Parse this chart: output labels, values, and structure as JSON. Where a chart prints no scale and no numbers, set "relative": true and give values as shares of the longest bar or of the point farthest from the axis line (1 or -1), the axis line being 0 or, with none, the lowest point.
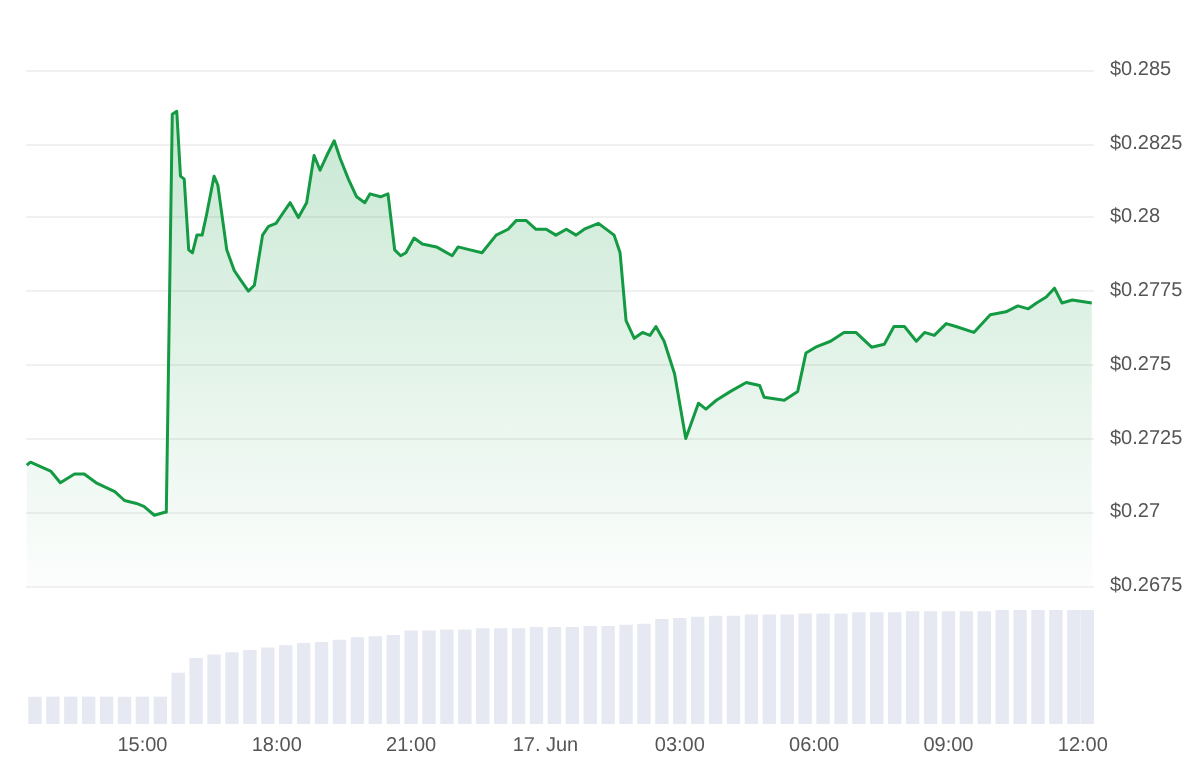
{
  "chart_data": [
    {
      "type": "area",
      "x": [
        "--06-16T12:25",
        "--06-16T12:30",
        "--06-16T12:57",
        "--06-16T13:10",
        "--06-16T13:29",
        "--06-16T13:42",
        "--06-16T13:58",
        "--06-16T14:23",
        "--06-16T14:36",
        "--06-16T14:52",
        "--06-16T15:02",
        "--06-16T15:16",
        "--06-16T15:30",
        "--06-16T15:32",
        "--06-16T15:40",
        "--06-16T15:46",
        "--06-16T15:51",
        "--06-16T15:56",
        "--06-16T16:02",
        "--06-16T16:07",
        "--06-16T16:13",
        "--06-16T16:20",
        "--06-16T16:26",
        "--06-16T16:36",
        "--06-16T16:41",
        "--06-16T16:53",
        "--06-16T17:03",
        "--06-16T17:11",
        "--06-16T17:22",
        "--06-16T17:30",
        "--06-16T17:41",
        "--06-16T17:49",
        "--06-16T17:59",
        "--06-16T18:07",
        "--06-16T18:18",
        "--06-16T18:29",
        "--06-16T18:40",
        "--06-16T18:50",
        "--06-16T18:58",
        "--06-16T19:07",
        "--06-16T19:17",
        "--06-16T19:25",
        "--06-16T19:36",
        "--06-16T19:47",
        "--06-16T19:58",
        "--06-16T20:05",
        "--06-16T20:19",
        "--06-16T20:29",
        "--06-16T20:38",
        "--06-16T20:46",
        "--06-16T20:53",
        "--06-16T21:04",
        "--06-16T21:15",
        "--06-16T21:34",
        "--06-16T21:55",
        "--06-16T22:03",
        "--06-16T22:19",
        "--06-16T22:35",
        "--06-16T22:54",
        "--06-16T23:10",
        "--06-16T23:21",
        "--06-16T23:34",
        "--06-16T23:47",
        "--06-17T00:01",
        "--06-17T00:14",
        "--06-17T00:28",
        "--06-17T00:41",
        "--06-17T00:52",
        "--06-17T01:11",
        "--06-17T01:32",
        "--06-17T01:40",
        "--06-17T01:48",
        "--06-17T01:59",
        "--06-17T02:10",
        "--06-17T02:20",
        "--06-17T02:28",
        "--06-17T02:39",
        "--06-17T02:53",
        "--06-17T03:08",
        "--06-17T03:25",
        "--06-17T03:35",
        "--06-17T03:49",
        "--06-17T04:08",
        "--06-17T04:29",
        "--06-17T04:47",
        "--06-17T04:53",
        "--06-17T05:20",
        "--06-17T05:38",
        "--06-17T05:49",
        "--06-17T06:02",
        "--06-17T06:22",
        "--06-17T06:40",
        "--06-17T06:56",
        "--06-17T07:17",
        "--06-17T07:34",
        "--06-17T07:47",
        "--06-17T08:01",
        "--06-17T08:17",
        "--06-17T08:28",
        "--06-17T08:41",
        "--06-17T08:57",
        "--06-17T09:10",
        "--06-17T09:34",
        "--06-17T09:56",
        "--06-17T10:17",
        "--06-17T10:33",
        "--06-17T10:47",
        "--06-17T10:58",
        "--06-17T11:11",
        "--06-17T11:22",
        "--06-17T11:32",
        "--06-17T11:46",
        "--06-17T12:12"
      ],
      "series": [
        {
          "color": "#139a43",
          "values": [
            0.2716,
            0.2717,
            0.2714,
            0.271,
            0.2713,
            0.2713,
            0.271,
            0.2707,
            0.2704,
            0.2703,
            0.2702,
            0.2699,
            0.27,
            0.27,
            0.2835,
            0.2836,
            0.2814,
            0.2813,
            0.2789,
            0.2788,
            0.2794,
            0.2794,
            0.2801,
            0.2814,
            0.2811,
            0.2789,
            0.2782,
            0.2779,
            0.2775,
            0.2777,
            0.2794,
            0.2797,
            0.2798,
            0.2801,
            0.2805,
            0.28,
            0.2805,
            0.2821,
            0.2816,
            0.2821,
            0.2826,
            0.282,
            0.2813,
            0.2807,
            0.2805,
            0.2808,
            0.2807,
            0.2808,
            0.2789,
            0.2787,
            0.2788,
            0.2793,
            0.2791,
            0.279,
            0.2787,
            0.279,
            0.2789,
            0.2788,
            0.2794,
            0.2796,
            0.2799,
            0.2799,
            0.2796,
            0.2796,
            0.2794,
            0.2796,
            0.2794,
            0.2796,
            0.2798,
            0.2794,
            0.2788,
            0.2765,
            0.2759,
            0.2761,
            0.276,
            0.2763,
            0.2758,
            0.2747,
            0.2725,
            0.2737,
            0.2735,
            0.2738,
            0.2741,
            0.2744,
            0.2743,
            0.2739,
            0.2738,
            0.2741,
            0.2754,
            0.2756,
            0.2758,
            0.2761,
            0.2761,
            0.2756,
            0.2757,
            0.2763,
            0.2763,
            0.2758,
            0.2761,
            0.276,
            0.2764,
            0.2763,
            0.2761,
            0.2767,
            0.2768,
            0.277,
            0.2769,
            0.2771,
            0.2773,
            0.2776,
            0.2771,
            0.2772,
            0.2771
          ]
        }
      ],
      "xlim": [
        "--06-16T12:24",
        "--06-17T12:15"
      ],
      "ylim": [
        0.2675,
        0.285
      ],
      "yticks": [
        {
          "value": 0.2675,
          "label": "$0.2675"
        },
        {
          "value": 0.27,
          "label": "$0.27"
        },
        {
          "value": 0.2725,
          "label": "$0.2725"
        },
        {
          "value": 0.275,
          "label": "$0.275"
        },
        {
          "value": 0.2775,
          "label": "$0.2775"
        },
        {
          "value": 0.28,
          "label": "$0.28"
        },
        {
          "value": 0.2825,
          "label": "$0.2825"
        },
        {
          "value": 0.285,
          "label": "$0.285"
        }
      ],
      "tick_labels": "y",
      "grid": "y"
    },
    {
      "type": "bar",
      "relative": true,
      "x": [
        "--06-16T12:36",
        "--06-16T13:00",
        "--06-16T13:24",
        "--06-16T13:48",
        "--06-16T14:12",
        "--06-16T14:36",
        "--06-16T15:00",
        "--06-16T15:24",
        "--06-16T15:48",
        "--06-16T16:12",
        "--06-16T16:36",
        "--06-16T17:00",
        "--06-16T17:24",
        "--06-16T17:48",
        "--06-16T18:12",
        "--06-16T18:36",
        "--06-16T19:00",
        "--06-16T19:24",
        "--06-16T19:48",
        "--06-16T20:12",
        "--06-16T20:36",
        "--06-16T21:00",
        "--06-16T21:24",
        "--06-16T21:48",
        "--06-16T22:12",
        "--06-16T22:36",
        "--06-16T23:00",
        "--06-16T23:24",
        "--06-16T23:48",
        "--06-17T00:12",
        "--06-17T00:36",
        "--06-17T01:00",
        "--06-17T01:24",
        "--06-17T01:48",
        "--06-17T02:12",
        "--06-17T02:36",
        "--06-17T03:00",
        "--06-17T03:24",
        "--06-17T03:48",
        "--06-17T04:12",
        "--06-17T04:36",
        "--06-17T05:00",
        "--06-17T05:24",
        "--06-17T05:48",
        "--06-17T06:12",
        "--06-17T06:36",
        "--06-17T07:00",
        "--06-17T07:24",
        "--06-17T07:48",
        "--06-17T08:12",
        "--06-17T08:36",
        "--06-17T09:00",
        "--06-17T09:24",
        "--06-17T09:48",
        "--06-17T10:12",
        "--06-17T10:36",
        "--06-17T11:00",
        "--06-17T11:24",
        "--06-17T11:48",
        "--06-17T12:06"
      ],
      "series": [
        {
          "color": "#e6e9f2",
          "values": [
            0.24,
            0.24,
            0.24,
            0.24,
            0.24,
            0.24,
            0.24,
            0.24,
            0.45,
            0.58,
            0.61,
            0.63,
            0.65,
            0.67,
            0.69,
            0.71,
            0.72,
            0.74,
            0.76,
            0.77,
            0.78,
            0.82,
            0.82,
            0.83,
            0.83,
            0.84,
            0.84,
            0.84,
            0.85,
            0.85,
            0.85,
            0.86,
            0.86,
            0.87,
            0.88,
            0.92,
            0.93,
            0.94,
            0.95,
            0.95,
            0.96,
            0.96,
            0.96,
            0.97,
            0.97,
            0.97,
            0.98,
            0.98,
            0.98,
            0.99,
            0.99,
            0.99,
            0.99,
            0.99,
            1,
            1,
            1,
            1,
            1,
            1
          ]
        }
      ],
      "xlim": [
        "--06-16T12:24",
        "--06-17T12:15"
      ],
      "xticks": [
        {
          "value": "--06-16T15:00",
          "label": "15:00"
        },
        {
          "value": "--06-16T18:00",
          "label": "18:00"
        },
        {
          "value": "--06-16T21:00",
          "label": "21:00"
        },
        {
          "value": "--06-17T00:00",
          "label": "17. Jun"
        },
        {
          "value": "--06-17T03:00",
          "label": "03:00"
        },
        {
          "value": "--06-17T06:00",
          "label": "06:00"
        },
        {
          "value": "--06-17T09:00",
          "label": "09:00"
        },
        {
          "value": "--06-17T12:00",
          "label": "12:00"
        }
      ],
      "tick_labels": "x"
    }
  ]
}
